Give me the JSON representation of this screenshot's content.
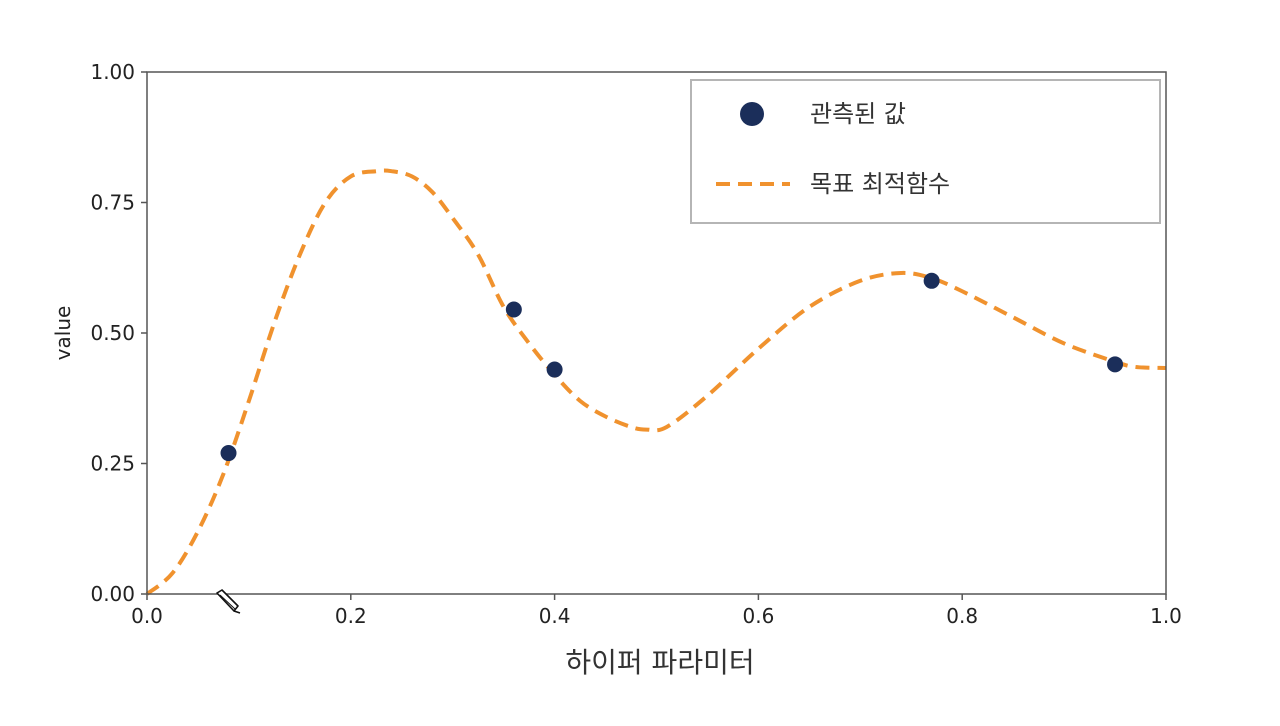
{
  "chart_data": {
    "type": "line",
    "title": "",
    "xlabel": "하이퍼 파라미터",
    "ylabel": "value",
    "xlim": [
      0.0,
      1.0
    ],
    "ylim": [
      0.0,
      1.0
    ],
    "x_ticks": [
      "0.0",
      "0.2",
      "0.4",
      "0.6",
      "0.8",
      "1.0"
    ],
    "y_ticks": [
      "0.00",
      "0.25",
      "0.50",
      "0.75",
      "1.00"
    ],
    "grid": false,
    "legend_position": "top-right",
    "series": [
      {
        "name": "목표 최적함수",
        "kind": "line",
        "style": "dashed",
        "color": "#F0922E",
        "x": [
          0.0,
          0.025,
          0.05,
          0.075,
          0.1,
          0.125,
          0.15,
          0.175,
          0.2,
          0.225,
          0.24,
          0.26,
          0.28,
          0.3,
          0.325,
          0.35,
          0.375,
          0.4,
          0.425,
          0.45,
          0.475,
          0.49,
          0.51,
          0.55,
          0.6,
          0.65,
          0.7,
          0.74,
          0.77,
          0.8,
          0.85,
          0.9,
          0.95,
          0.97,
          1.0
        ],
        "y": [
          0.0,
          0.04,
          0.12,
          0.23,
          0.37,
          0.52,
          0.65,
          0.75,
          0.8,
          0.81,
          0.81,
          0.8,
          0.77,
          0.72,
          0.65,
          0.55,
          0.48,
          0.42,
          0.37,
          0.34,
          0.32,
          0.315,
          0.32,
          0.38,
          0.47,
          0.55,
          0.6,
          0.615,
          0.605,
          0.58,
          0.53,
          0.48,
          0.445,
          0.435,
          0.433
        ]
      },
      {
        "name": "관측된 값",
        "kind": "scatter",
        "color": "#1B2E5A",
        "x": [
          0.08,
          0.36,
          0.4,
          0.77,
          0.95
        ],
        "y": [
          0.27,
          0.545,
          0.43,
          0.6,
          0.44
        ]
      }
    ]
  },
  "icons": {
    "cursor": "pencil-cursor-icon"
  }
}
